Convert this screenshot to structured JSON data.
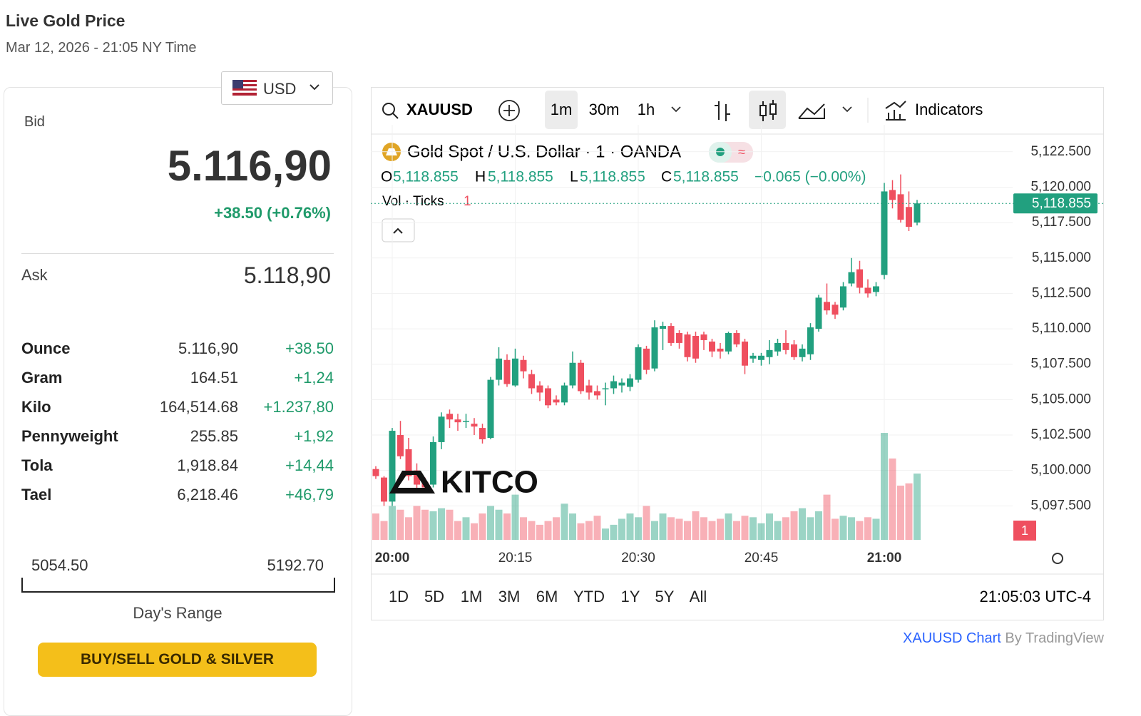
{
  "header": {
    "title": "Live Gold Price",
    "subtitle": "Mar 12, 2026 - 21:05 NY Time"
  },
  "currency": "USD",
  "bid": {
    "label": "Bid",
    "value": "5.116,90",
    "change": "+38.50 (+0.76%)"
  },
  "ask": {
    "label": "Ask",
    "value": "5.118,90"
  },
  "units": {
    "rows": [
      [
        "Ounce",
        "5.116,90",
        "+38.50"
      ],
      [
        "Gram",
        "164.51",
        "+1,24"
      ],
      [
        "Kilo",
        "164,514.68",
        "+1.237,80"
      ],
      [
        "Pennyweight",
        "255.85",
        "+1,92"
      ],
      [
        "Tola",
        "1,918.84",
        "+14,44"
      ],
      [
        "Tael",
        "6,218.46",
        "+46,79"
      ]
    ]
  },
  "day_range": {
    "low": "5054.50",
    "high": "5192.70",
    "label": "Day's Range"
  },
  "cta": "BUY/SELL GOLD & SILVER",
  "toolbar": {
    "symbol": "XAUUSD",
    "intervals": [
      "1m",
      "30m",
      "1h"
    ],
    "indicators": "Indicators"
  },
  "logo": "KITCO",
  "chart_data": {
    "type": "candlestick",
    "title": "Gold Spot / U.S. Dollar · 1 · OANDA",
    "legend": {
      "o_label": "O",
      "o": "5,118.855",
      "h_label": "H",
      "h": "5,118.855",
      "l_label": "L",
      "l": "5,118.855",
      "c_label": "C",
      "c": "5,118.855",
      "change": "−0.065 (−0.00%)"
    },
    "volume_title": "Vol · Ticks",
    "volume_label": "1",
    "categories": [
      null,
      null,
      "20:00",
      null,
      null,
      null,
      null,
      null,
      null,
      null,
      null,
      null,
      null,
      null,
      null,
      null,
      null,
      "20:15",
      null,
      null,
      null,
      null,
      null,
      null,
      null,
      null,
      null,
      null,
      null,
      null,
      null,
      null,
      "20:30",
      null,
      null,
      null,
      null,
      null,
      null,
      null,
      null,
      null,
      null,
      null,
      null,
      null,
      null,
      "20:45",
      null,
      null,
      null,
      null,
      null,
      null,
      null,
      null,
      null,
      null,
      null,
      null,
      null,
      null,
      "21:00",
      null,
      null,
      null,
      null
    ],
    "open": [
      5100.1,
      5099.5,
      5097.8,
      5102.5,
      5101.5,
      5100.0,
      5099.2,
      5099.0,
      5102.0,
      5104.0,
      5103.6,
      5103.5,
      5103.3,
      5103.0,
      5102.3,
      5106.4,
      5107.8,
      5106.0,
      5107.8,
      5106.8,
      5106.0,
      5105.8,
      5105.0,
      5104.8,
      5106.0,
      5107.6,
      5106.0,
      5105.6,
      5105.8,
      5105.8,
      5106.0,
      5105.9,
      5106.4,
      5108.6,
      5107.2,
      5110.0,
      5110.2,
      5109.7,
      5109.6,
      5109.5,
      5109.6,
      5109.1,
      5108.6,
      5108.4,
      5109.7,
      5109.1,
      5107.9,
      5107.8,
      5108.0,
      5108.4,
      5109.0,
      5108.9,
      5108.0,
      5108.2,
      5110.0,
      5111.9,
      5111.7,
      5111.5,
      5113.2,
      5114.2,
      5112.9,
      5112.6,
      5113.8,
      5119.8,
      5119.5,
      5118.6,
      5117.5
    ],
    "high": [
      5100.3,
      5099.6,
      5103.0,
      5103.5,
      5102.3,
      5100.5,
      5099.5,
      5102.4,
      5104.1,
      5104.3,
      5104.0,
      5104.0,
      5103.7,
      5103.3,
      5106.6,
      5108.7,
      5108.2,
      5108.6,
      5108.1,
      5107.1,
      5106.3,
      5106.0,
      5105.3,
      5106.2,
      5108.4,
      5107.8,
      5106.4,
      5106.0,
      5106.2,
      5106.7,
      5106.5,
      5106.8,
      5108.9,
      5108.8,
      5110.6,
      5110.5,
      5110.4,
      5109.9,
      5109.8,
      5109.8,
      5109.8,
      5109.3,
      5109.0,
      5109.8,
      5109.9,
      5109.3,
      5108.3,
      5108.3,
      5109.2,
      5109.3,
      5109.9,
      5109.2,
      5108.9,
      5110.4,
      5112.4,
      5113.2,
      5111.9,
      5113.3,
      5115.0,
      5114.8,
      5113.5,
      5113.3,
      5120.3,
      5120.5,
      5120.9,
      5119.7,
      5119.1
    ],
    "low": [
      5099.4,
      5097.5,
      5097.5,
      5100.8,
      5099.3,
      5098.7,
      5098.5,
      5098.8,
      5101.5,
      5103.0,
      5102.8,
      5103.0,
      5102.5,
      5101.9,
      5102.2,
      5106.0,
      5105.9,
      5105.9,
      5106.5,
      5105.4,
      5104.9,
      5104.4,
      5104.6,
      5104.6,
      5105.8,
      5105.4,
      5105.0,
      5105.0,
      5104.6,
      5105.4,
      5105.5,
      5105.6,
      5106.2,
      5106.8,
      5107.0,
      5108.5,
      5108.8,
      5108.6,
      5107.7,
      5107.6,
      5108.5,
      5108.0,
      5107.9,
      5108.2,
      5108.7,
      5106.8,
      5107.6,
      5107.4,
      5107.5,
      5108.1,
      5108.2,
      5107.8,
      5107.7,
      5107.8,
      5109.8,
      5111.0,
      5110.7,
      5111.3,
      5113.0,
      5112.5,
      5112.2,
      5112.3,
      5113.5,
      5118.5,
      5117.5,
      5116.9,
      5117.3
    ],
    "close": [
      5099.6,
      5097.8,
      5102.8,
      5101.0,
      5099.6,
      5099.0,
      5098.8,
      5102.0,
      5103.8,
      5103.6,
      5103.4,
      5103.5,
      5103.1,
      5102.2,
      5106.4,
      5107.9,
      5106.1,
      5107.9,
      5107.0,
      5105.8,
      5105.5,
      5104.6,
      5104.8,
      5106.0,
      5107.6,
      5105.6,
      5105.5,
      5105.3,
      5105.8,
      5106.3,
      5106.2,
      5106.5,
      5108.7,
      5107.1,
      5110.1,
      5110.2,
      5109.0,
      5109.0,
      5108.0,
      5107.9,
      5109.2,
      5108.4,
      5108.4,
      5109.7,
      5108.9,
      5107.4,
      5108.1,
      5108.1,
      5108.5,
      5109.0,
      5108.5,
      5108.0,
      5108.6,
      5110.1,
      5112.2,
      5111.3,
      5111.0,
      5113.0,
      5114.0,
      5112.9,
      5112.5,
      5113.0,
      5119.7,
      5119.1,
      5117.7,
      5117.2,
      5118.855
    ],
    "volume": [
      35,
      25,
      45,
      40,
      30,
      45,
      40,
      38,
      42,
      40,
      25,
      30,
      22,
      35,
      45,
      40,
      35,
      60,
      30,
      25,
      20,
      25,
      30,
      48,
      35,
      22,
      25,
      32,
      15,
      20,
      28,
      35,
      30,
      45,
      25,
      35,
      30,
      28,
      25,
      38,
      30,
      25,
      28,
      35,
      25,
      32,
      30,
      22,
      35,
      25,
      30,
      38,
      42,
      30,
      38,
      60,
      28,
      32,
      30,
      25,
      30,
      28,
      142,
      108,
      72,
      75,
      88
    ],
    "last_value_label": "5,118.855",
    "up_color": "#22a07f",
    "down_color": "#ef4f5f",
    "ylim": [
      5095.1,
      5123.9
    ],
    "yticks": [
      {
        "value": 5097.5,
        "label": "5,097.500"
      },
      {
        "value": 5100,
        "label": "5,100.000"
      },
      {
        "value": 5102.5,
        "label": "5,102.500"
      },
      {
        "value": 5105,
        "label": "5,105.000"
      },
      {
        "value": 5107.5,
        "label": "5,107.500"
      },
      {
        "value": 5110,
        "label": "5,110.000"
      },
      {
        "value": 5112.5,
        "label": "5,112.500"
      },
      {
        "value": 5115,
        "label": "5,115.000"
      },
      {
        "value": 5117.5,
        "label": "5,117.500"
      },
      {
        "value": 5120,
        "label": "5,120.000"
      },
      {
        "value": 5122.5,
        "label": "5,122.500"
      }
    ],
    "grid": true,
    "range_buttons": [
      "1D",
      "5D",
      "1M",
      "3M",
      "6M",
      "YTD",
      "1Y",
      "5Y",
      "All"
    ],
    "clock": "21:05:03 UTC-4"
  },
  "footer": {
    "link": "XAUUSD Chart",
    "by": "By TradingView"
  }
}
